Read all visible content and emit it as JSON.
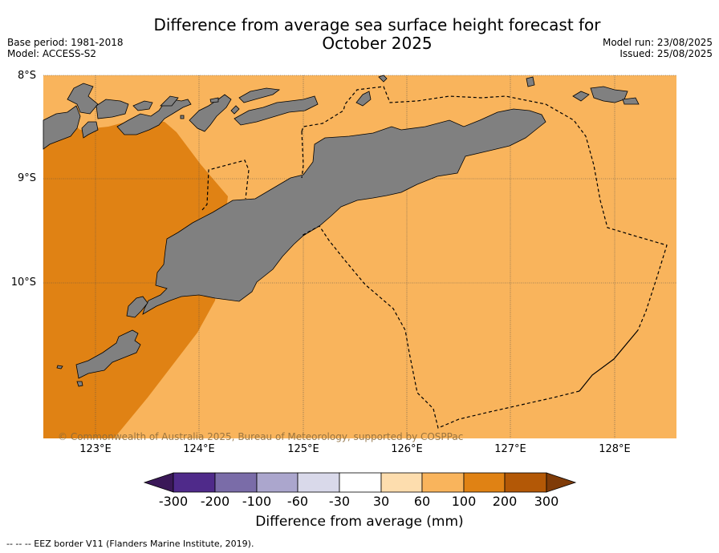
{
  "header": {
    "title_line1": "Difference from average sea surface height forecast for",
    "title_line2": "October 2025",
    "base_period": "Base period: 1981-2018",
    "model": "Model: ACCESS-S2",
    "model_run": "Model run: 23/08/2025",
    "issued": "Issued: 25/08/2025"
  },
  "map": {
    "lat_labels": [
      "8°S",
      "9°S",
      "10°S"
    ],
    "lon_labels": [
      "123°E",
      "124°E",
      "125°E",
      "126°E",
      "127°E",
      "128°E"
    ],
    "copyright": "© Commonwealth of Australia 2025, Bureau of Meteorology, supported by COSPPac",
    "land_color": "#808080",
    "background_category": "60 to 100",
    "western_category": "100 to 200"
  },
  "colorbar": {
    "title": "Difference from average (mm)",
    "ticks": [
      "-300",
      "-200",
      "-100",
      "-60",
      "-30",
      "30",
      "60",
      "100",
      "200",
      "300"
    ],
    "colors": [
      "#3a1858",
      "#4f2a8a",
      "#7a6ca8",
      "#aba6cd",
      "#d9d9ea",
      "#ffffff",
      "#fdddae",
      "#f9b45c",
      "#e08214",
      "#b35806",
      "#7f3b08"
    ]
  },
  "footnote": "--  --  -- EEZ border V11 (Flanders Marine Institute, 2019)."
}
